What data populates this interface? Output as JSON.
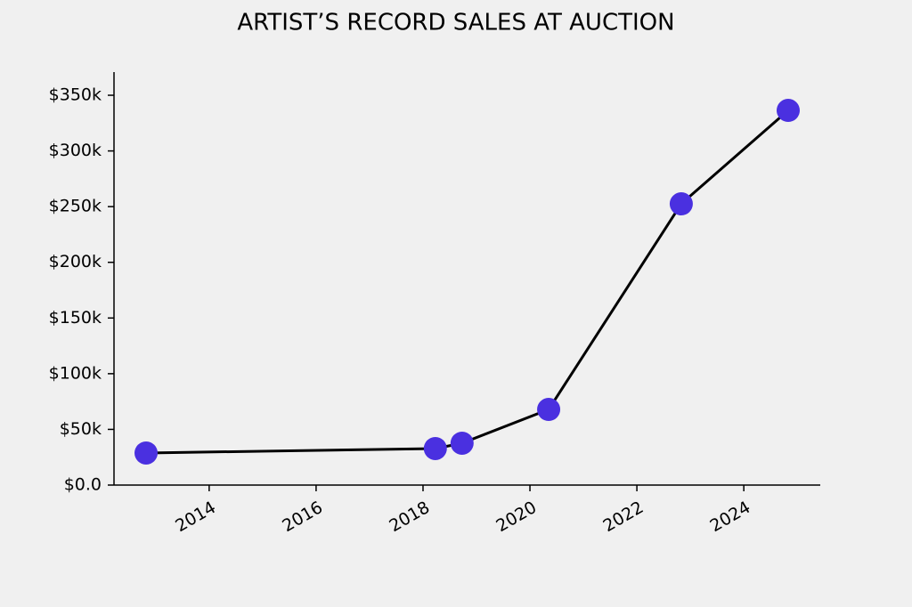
{
  "chart_data": {
    "type": "line",
    "title": "ARTIST’S RECORD SALES AT AUCTION",
    "x": [
      2012.82,
      2018.23,
      2018.73,
      2020.35,
      2022.83,
      2024.83
    ],
    "series": [
      {
        "name": "Record sales",
        "color": "#4a30e0",
        "line_color": "#000000",
        "values": [
          28800,
          32800,
          37600,
          67900,
          252500,
          336400
        ]
      }
    ],
    "xlim": [
      2012.22,
      2025.43
    ],
    "xticks": [
      2014,
      2016,
      2018,
      2020,
      2022,
      2024
    ],
    "ylim": [
      0,
      370800
    ],
    "yticks": [
      {
        "value": 0,
        "label": "$0.0"
      },
      {
        "value": 50000,
        "label": "$50k"
      },
      {
        "value": 100000,
        "label": "$100k"
      },
      {
        "value": 150000,
        "label": "$150k"
      },
      {
        "value": 200000,
        "label": "$200k"
      },
      {
        "value": 250000,
        "label": "$250k"
      },
      {
        "value": 300000,
        "label": "$300k"
      },
      {
        "value": 350000,
        "label": "$350k"
      }
    ]
  }
}
